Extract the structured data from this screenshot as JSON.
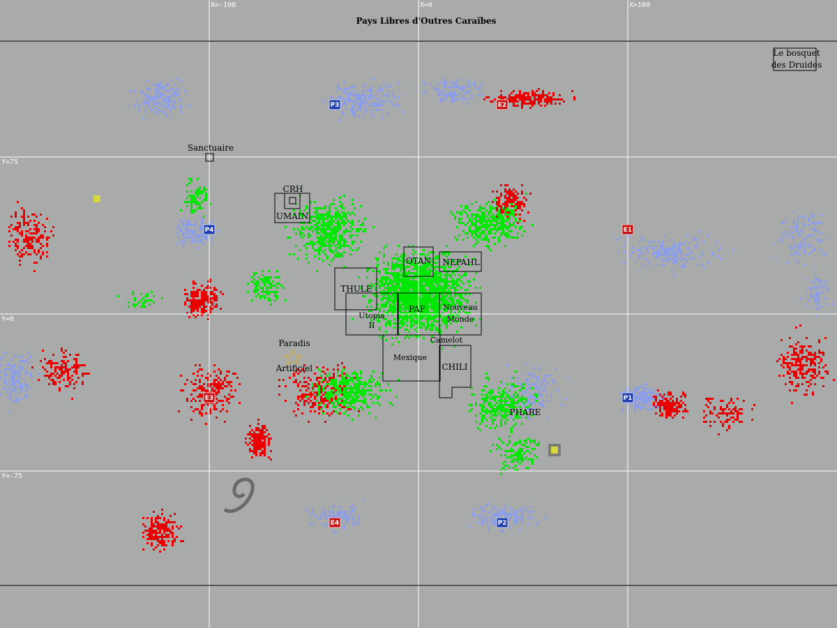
{
  "map": {
    "title": "Pays Libres d'Outres Caraïbes",
    "grid": {
      "x_labels": [
        {
          "text": "X=-100",
          "value": -100
        },
        {
          "text": "X=0",
          "value": 0
        },
        {
          "text": "X=100",
          "value": 100
        }
      ],
      "y_labels": [
        {
          "text": "Y=75",
          "value": 75
        },
        {
          "text": "Y=0",
          "value": 0
        },
        {
          "text": "Y=-75",
          "value": -75
        }
      ]
    },
    "regions": [
      {
        "id": "crh",
        "label": "CRH"
      },
      {
        "id": "umain",
        "label": "UMAIN"
      },
      {
        "id": "otan",
        "label": "OTAN"
      },
      {
        "id": "nepahl",
        "label": "NEPAHL"
      },
      {
        "id": "thule",
        "label": "THULE"
      },
      {
        "id": "utopia",
        "label": "Utopia II"
      },
      {
        "id": "paf",
        "label": "PAF"
      },
      {
        "id": "nouveau-monde",
        "label": "Nouveau Monde"
      },
      {
        "id": "camelot",
        "label": "Camelot"
      },
      {
        "id": "mexique",
        "label": "Mexique"
      },
      {
        "id": "chili",
        "label": "CHILI"
      },
      {
        "id": "phare",
        "label": "PHARE"
      },
      {
        "id": "sanctuaire",
        "label": "Sanctuaire"
      },
      {
        "id": "paradis",
        "label": "Paradis Artificiel"
      },
      {
        "id": "bosquet",
        "label": "Le bosquet des Druides"
      }
    ],
    "markers": [
      {
        "label": "P1",
        "kind": "blue"
      },
      {
        "label": "P2",
        "kind": "blue"
      },
      {
        "label": "P3",
        "kind": "blue"
      },
      {
        "label": "P4",
        "kind": "blue"
      },
      {
        "label": "E1",
        "kind": "red"
      },
      {
        "label": "E2",
        "kind": "red"
      },
      {
        "label": "E3",
        "kind": "red"
      },
      {
        "label": "E4",
        "kind": "red"
      }
    ],
    "colors": {
      "background": "#a9abab",
      "grid": "#ffffff",
      "border_line": "#000000",
      "green": "#00e600",
      "red": "#e80000",
      "blue": "#8c9ee8",
      "marker_blue": "#1f3fb0",
      "marker_red": "#c81010",
      "yellow": "#d8d840"
    }
  }
}
